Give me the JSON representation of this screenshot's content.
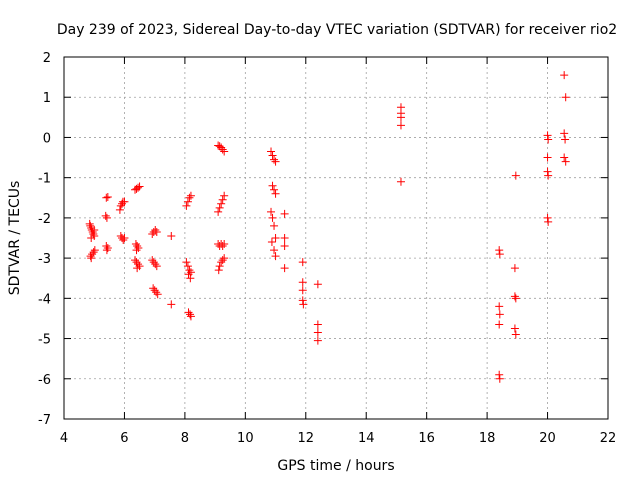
{
  "chart_data": {
    "type": "scatter",
    "title": "Day 239 of 2023, Sidereal Day-to-day VTEC variation (SDTVAR) for receiver rio2",
    "xlabel": "GPS time / hours",
    "ylabel": "SDTVAR / TECUs",
    "xlim": [
      4,
      22
    ],
    "ylim": [
      -7,
      2
    ],
    "xticks": [
      4,
      6,
      8,
      10,
      12,
      14,
      16,
      18,
      20,
      22
    ],
    "yticks": [
      2,
      1,
      0,
      -1,
      -2,
      -3,
      -4,
      -5,
      -6,
      -7
    ],
    "grid": true,
    "marker": "plus",
    "color": "#ff0000",
    "series": [
      {
        "name": "SDTVAR",
        "points": [
          [
            4.85,
            -2.15
          ],
          [
            4.87,
            -2.2
          ],
          [
            4.9,
            -2.25
          ],
          [
            4.92,
            -2.3
          ],
          [
            4.95,
            -2.35
          ],
          [
            4.97,
            -2.4
          ],
          [
            5.0,
            -2.45
          ],
          [
            4.9,
            -2.5
          ],
          [
            5.0,
            -2.3
          ],
          [
            4.88,
            -2.95
          ],
          [
            4.93,
            -2.9
          ],
          [
            4.98,
            -2.85
          ],
          [
            5.02,
            -2.8
          ],
          [
            4.9,
            -3.0
          ],
          [
            5.4,
            -1.5
          ],
          [
            5.45,
            -1.48
          ],
          [
            5.38,
            -1.95
          ],
          [
            5.42,
            -2.0
          ],
          [
            5.4,
            -2.7
          ],
          [
            5.45,
            -2.75
          ],
          [
            5.42,
            -2.8
          ],
          [
            5.85,
            -1.8
          ],
          [
            5.88,
            -1.7
          ],
          [
            5.92,
            -1.65
          ],
          [
            5.95,
            -1.6
          ],
          [
            6.0,
            -1.6
          ],
          [
            5.88,
            -2.45
          ],
          [
            5.92,
            -2.5
          ],
          [
            5.96,
            -2.55
          ],
          [
            6.0,
            -2.5
          ],
          [
            6.35,
            -1.3
          ],
          [
            6.4,
            -1.28
          ],
          [
            6.45,
            -1.25
          ],
          [
            6.5,
            -1.22
          ],
          [
            6.38,
            -2.65
          ],
          [
            6.42,
            -2.7
          ],
          [
            6.46,
            -2.75
          ],
          [
            6.4,
            -2.8
          ],
          [
            6.35,
            -3.05
          ],
          [
            6.4,
            -3.1
          ],
          [
            6.45,
            -3.15
          ],
          [
            6.5,
            -3.2
          ],
          [
            6.42,
            -3.25
          ],
          [
            6.92,
            -2.4
          ],
          [
            6.97,
            -2.35
          ],
          [
            7.02,
            -2.3
          ],
          [
            7.07,
            -2.35
          ],
          [
            6.92,
            -3.05
          ],
          [
            6.97,
            -3.1
          ],
          [
            7.02,
            -3.15
          ],
          [
            7.07,
            -3.2
          ],
          [
            6.95,
            -3.75
          ],
          [
            7.0,
            -3.8
          ],
          [
            7.05,
            -3.85
          ],
          [
            7.1,
            -3.9
          ],
          [
            7.55,
            -2.45
          ],
          [
            7.55,
            -4.15
          ],
          [
            8.05,
            -1.7
          ],
          [
            8.1,
            -1.6
          ],
          [
            8.15,
            -1.5
          ],
          [
            8.2,
            -1.45
          ],
          [
            8.05,
            -3.1
          ],
          [
            8.1,
            -3.2
          ],
          [
            8.15,
            -3.3
          ],
          [
            8.2,
            -3.35
          ],
          [
            8.12,
            -3.4
          ],
          [
            8.18,
            -3.5
          ],
          [
            8.12,
            -4.35
          ],
          [
            8.17,
            -4.4
          ],
          [
            8.2,
            -4.45
          ],
          [
            9.1,
            -0.2
          ],
          [
            9.15,
            -0.22
          ],
          [
            9.2,
            -0.25
          ],
          [
            9.25,
            -0.3
          ],
          [
            9.3,
            -0.35
          ],
          [
            9.1,
            -1.85
          ],
          [
            9.15,
            -1.75
          ],
          [
            9.2,
            -1.65
          ],
          [
            9.25,
            -1.55
          ],
          [
            9.3,
            -1.45
          ],
          [
            9.1,
            -2.65
          ],
          [
            9.15,
            -2.7
          ],
          [
            9.2,
            -2.65
          ],
          [
            9.25,
            -2.7
          ],
          [
            9.3,
            -2.65
          ],
          [
            9.15,
            -3.2
          ],
          [
            9.2,
            -3.1
          ],
          [
            9.25,
            -3.05
          ],
          [
            9.3,
            -3.0
          ],
          [
            9.12,
            -3.3
          ],
          [
            10.85,
            -0.35
          ],
          [
            10.9,
            -0.45
          ],
          [
            10.95,
            -0.55
          ],
          [
            11.0,
            -0.6
          ],
          [
            10.9,
            -1.2
          ],
          [
            10.95,
            -1.3
          ],
          [
            11.0,
            -1.4
          ],
          [
            10.85,
            -1.85
          ],
          [
            10.9,
            -2.0
          ],
          [
            10.95,
            -2.2
          ],
          [
            11.0,
            -2.5
          ],
          [
            10.88,
            -2.6
          ],
          [
            10.95,
            -2.8
          ],
          [
            11.0,
            -2.95
          ],
          [
            11.3,
            -1.9
          ],
          [
            11.3,
            -2.5
          ],
          [
            11.3,
            -2.7
          ],
          [
            11.3,
            -3.25
          ],
          [
            11.9,
            -3.1
          ],
          [
            11.9,
            -3.6
          ],
          [
            11.9,
            -3.8
          ],
          [
            11.9,
            -4.05
          ],
          [
            11.92,
            -4.15
          ],
          [
            12.4,
            -3.65
          ],
          [
            12.4,
            -4.65
          ],
          [
            12.4,
            -4.85
          ],
          [
            12.4,
            -5.05
          ],
          [
            15.15,
            0.75
          ],
          [
            15.15,
            0.6
          ],
          [
            15.15,
            0.5
          ],
          [
            15.15,
            0.3
          ],
          [
            15.15,
            -1.1
          ],
          [
            18.4,
            -2.8
          ],
          [
            18.42,
            -2.9
          ],
          [
            18.4,
            -4.2
          ],
          [
            18.42,
            -4.4
          ],
          [
            18.4,
            -4.65
          ],
          [
            18.4,
            -5.9
          ],
          [
            18.42,
            -6.0
          ],
          [
            18.95,
            -0.95
          ],
          [
            18.92,
            -3.25
          ],
          [
            18.92,
            -3.95
          ],
          [
            18.95,
            -4.0
          ],
          [
            18.92,
            -4.75
          ],
          [
            18.95,
            -4.9
          ],
          [
            20.0,
            0.05
          ],
          [
            20.02,
            -0.05
          ],
          [
            20.0,
            -0.5
          ],
          [
            20.0,
            -0.85
          ],
          [
            20.02,
            -0.95
          ],
          [
            20.0,
            -2.0
          ],
          [
            20.02,
            -2.1
          ],
          [
            20.55,
            1.55
          ],
          [
            20.6,
            1.0
          ],
          [
            20.55,
            0.1
          ],
          [
            20.58,
            -0.05
          ],
          [
            20.55,
            -0.5
          ],
          [
            20.6,
            -0.6
          ]
        ]
      }
    ]
  }
}
